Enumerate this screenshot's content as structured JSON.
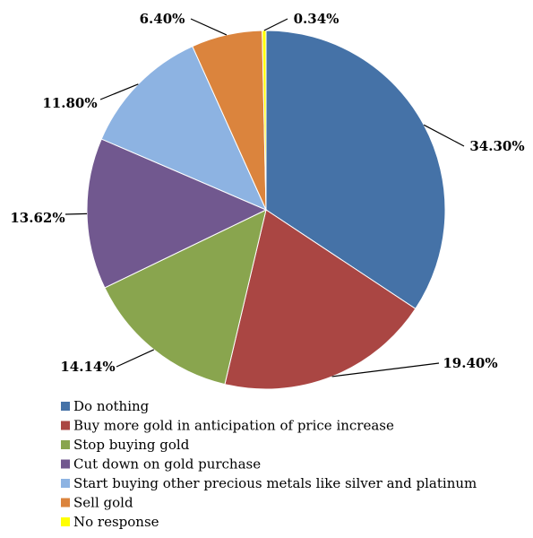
{
  "chart_data": {
    "type": "pie",
    "title": "",
    "start_angle_deg": 0,
    "direction": "clockwise",
    "slices": [
      {
        "label": "Do nothing",
        "value": 34.3,
        "display": "34.30%",
        "color": "#4572A7"
      },
      {
        "label": "Buy more gold in anticipation of price increase",
        "value": 19.4,
        "display": "19.40%",
        "color": "#AA4643"
      },
      {
        "label": "Stop buying gold",
        "value": 14.14,
        "display": "14.14%",
        "color": "#89A54E"
      },
      {
        "label": "Cut down on gold purchase",
        "value": 13.62,
        "display": "13.62%",
        "color": "#71588F"
      },
      {
        "label": "Start buying other precious metals like silver and platinum",
        "value": 11.8,
        "display": "11.80%",
        "color": "#8DB3E2"
      },
      {
        "label": "Sell gold",
        "value": 6.4,
        "display": "6.40%",
        "color": "#DB843D"
      },
      {
        "label": "No response",
        "value": 0.34,
        "display": "0.34%",
        "color": "#FFFF00"
      }
    ],
    "legend_position": "bottom-left"
  }
}
